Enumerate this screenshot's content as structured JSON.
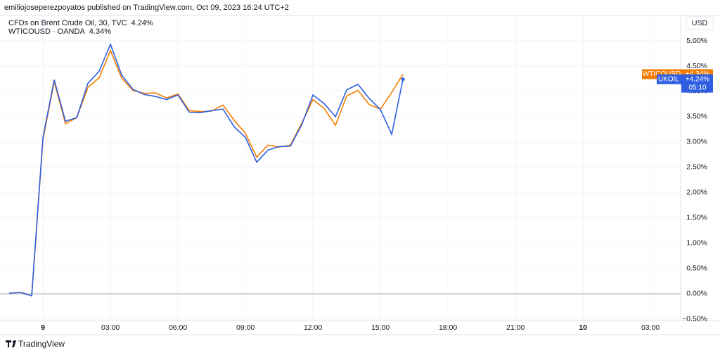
{
  "header": "emiliojoseperezpoyatos published on TradingView.com, Oct 09, 2023 16:24 UTC+2",
  "footer": "TradingView",
  "chart_data": {
    "type": "line",
    "currency": "USD",
    "x": [
      -1.5,
      -1,
      -0.5,
      0,
      0.5,
      1,
      1.5,
      2,
      2.5,
      3,
      3.5,
      4,
      4.5,
      5,
      5.5,
      6,
      6.5,
      7,
      7.5,
      8,
      8.5,
      9,
      9.5,
      10,
      10.5,
      11,
      11.5,
      12,
      12.5,
      13,
      13.5,
      14,
      14.5,
      15,
      15.5,
      16
    ],
    "xlim": [
      -1.66,
      28.34
    ],
    "xticks": [
      {
        "value": 0,
        "label": "9"
      },
      {
        "value": 3,
        "label": "03:00"
      },
      {
        "value": 6,
        "label": "06:00"
      },
      {
        "value": 9,
        "label": "09:00"
      },
      {
        "value": 12,
        "label": "12:00"
      },
      {
        "value": 15,
        "label": "15:00"
      },
      {
        "value": 18,
        "label": "18:00"
      },
      {
        "value": 21,
        "label": "21:00"
      },
      {
        "value": 24,
        "label": "10"
      },
      {
        "value": 27,
        "label": "03:00"
      }
    ],
    "ylim": [
      -0.53,
      5.5
    ],
    "yticks": [
      {
        "value": -0.5,
        "label": "−0.50%"
      },
      {
        "value": 0,
        "label": "0.00%"
      },
      {
        "value": 0.5,
        "label": "0.50%"
      },
      {
        "value": 1,
        "label": "1.00%"
      },
      {
        "value": 1.5,
        "label": "1.50%"
      },
      {
        "value": 2,
        "label": "2.00%"
      },
      {
        "value": 2.5,
        "label": "2.50%"
      },
      {
        "value": 3,
        "label": "3.00%"
      },
      {
        "value": 3.5,
        "label": "3.50%"
      },
      {
        "value": 4,
        "label": "4.00%"
      },
      {
        "value": 4.5,
        "label": "4.50%"
      },
      {
        "value": 5,
        "label": "5.00%"
      }
    ],
    "grid": true,
    "series": [
      {
        "name": "WTICOUSD",
        "legend_name": "WTICOUSD · OANDA",
        "legend_value": "4.34%",
        "tag_value": "+4.34%",
        "color": "#f57c00",
        "values": [
          0.01,
          0.03,
          -0.04,
          3.05,
          4.19,
          3.36,
          3.48,
          4.08,
          4.27,
          4.81,
          4.26,
          4.02,
          3.96,
          3.97,
          3.87,
          3.95,
          3.62,
          3.6,
          3.61,
          3.73,
          3.43,
          3.17,
          2.7,
          2.94,
          2.9,
          2.94,
          3.37,
          3.84,
          3.66,
          3.33,
          3.91,
          4.02,
          3.74,
          3.65,
          3.98,
          4.34
        ]
      },
      {
        "name": "UKOIL",
        "legend_name": "CFDs on Brent Crude Oil, 30, TVC",
        "legend_value": "4.24%",
        "tag_value": "+4.24%",
        "countdown": "05:10",
        "color": "#2f5fe0",
        "values": [
          0.01,
          0.03,
          -0.04,
          3.09,
          4.23,
          3.41,
          3.48,
          4.16,
          4.4,
          4.93,
          4.32,
          4.04,
          3.94,
          3.9,
          3.84,
          3.93,
          3.59,
          3.58,
          3.62,
          3.65,
          3.3,
          3.09,
          2.6,
          2.84,
          2.91,
          2.92,
          3.34,
          3.93,
          3.76,
          3.5,
          4.03,
          4.14,
          3.86,
          3.64,
          3.15,
          4.24
        ]
      }
    ]
  }
}
